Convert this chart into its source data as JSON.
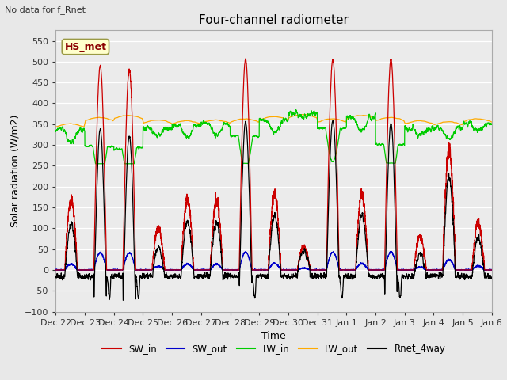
{
  "title": "Four-channel radiometer",
  "subtitle": "No data for f_Rnet",
  "xlabel": "Time",
  "ylabel": "Solar radiation (W/m2)",
  "station_label": "HS_met",
  "ylim": [
    -100,
    575
  ],
  "yticks": [
    -100,
    -50,
    0,
    50,
    100,
    150,
    200,
    250,
    300,
    350,
    400,
    450,
    500,
    550
  ],
  "colors": {
    "SW_in": "#cc0000",
    "SW_out": "#0000cc",
    "LW_in": "#00cc00",
    "LW_out": "#ffaa00",
    "Rnet_4way": "#000000"
  },
  "legend_labels": [
    "SW_in",
    "SW_out",
    "LW_in",
    "LW_out",
    "Rnet_4way"
  ],
  "bg_color": "#e8e8e8",
  "plot_bg_color": "#ebebeb",
  "n_days": 15,
  "pts_per_day": 288,
  "tick_labels": [
    "Dec 22",
    "Dec 23",
    "Dec 24",
    "Dec 25",
    "Dec 26",
    "Dec 27",
    "Dec 28",
    "Dec 29",
    "Dec 30",
    "Dec 31",
    "Jan 1",
    "Jan 2",
    "Jan 3",
    "Jan 4",
    "Jan 5",
    "Jan 6"
  ]
}
